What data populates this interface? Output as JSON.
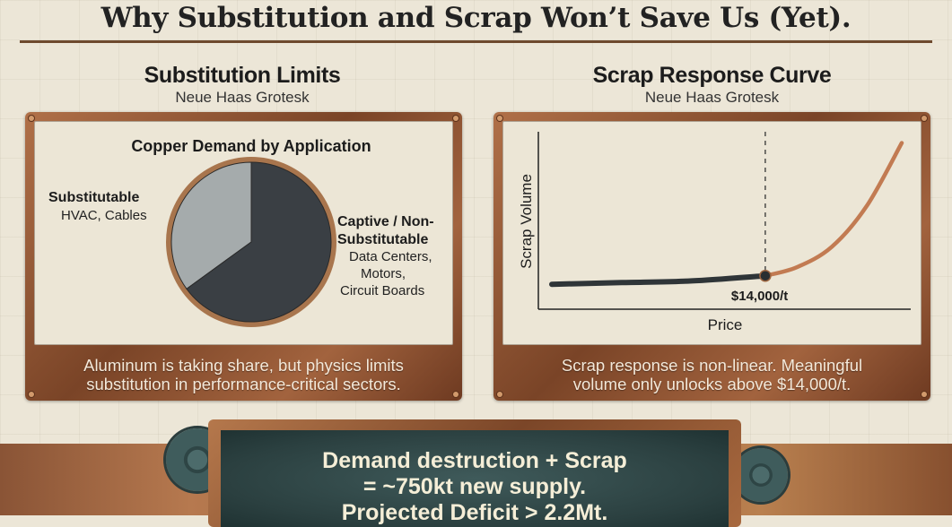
{
  "title": "Why Substitution and Scrap Won’t Save Us (Yet).",
  "left": {
    "heading": "Substitution Limits",
    "subheading": "Neue Haas Grotesk",
    "chart_title": "Copper Demand by Application",
    "substitutable_label": "Substitutable",
    "substitutable_detail": "HVAC, Cables",
    "captive_label_line1": "Captive / Non-",
    "captive_label_line2": "Substitutable",
    "captive_detail_line1": "Data Centers,",
    "captive_detail_line2": "Motors,",
    "captive_detail_line3": "Circuit Boards",
    "caption_line1": "Aluminum is taking share, but physics limits",
    "caption_line2": "substitution in performance-critical sectors."
  },
  "right": {
    "heading": "Scrap Response Curve",
    "subheading": "Neue Haas Grotesk",
    "caption_line1": "Scrap response is non-linear. Meaningful",
    "caption_line2": "volume only unlocks above $14,000/t."
  },
  "bottom": {
    "line1": "Demand destruction + Scrap",
    "line2": "= ~750kt new supply.",
    "line3": "Projected Deficit > 2.2Mt."
  },
  "colors": {
    "copper": "#b87048",
    "slate": "#3a3f44",
    "gray_slice": "#a5abac",
    "curve_dark": "#2f3538",
    "curve_copper": "#c27b52",
    "chalkboard": "#2e4545"
  },
  "chart_data": [
    {
      "type": "pie",
      "title": "Copper Demand by Application",
      "slices": [
        {
          "label": "Substitutable",
          "detail": "HVAC, Cables",
          "value": 0.35,
          "color": "#a5abac"
        },
        {
          "label": "Captive / Non-Substitutable",
          "detail": "Data Centers, Motors, Circuit Boards",
          "value": 0.65,
          "color": "#3a3f44"
        }
      ]
    },
    {
      "type": "line",
      "title": "Scrap Response Curve",
      "xlabel": "Price",
      "ylabel": "Scrap Volume",
      "threshold_label": "$14,000/t",
      "threshold_x": 0.61,
      "curve_points": [
        [
          0.0,
          0.12
        ],
        [
          0.2,
          0.13
        ],
        [
          0.4,
          0.14
        ],
        [
          0.61,
          0.17
        ],
        [
          0.7,
          0.22
        ],
        [
          0.8,
          0.34
        ],
        [
          0.9,
          0.58
        ],
        [
          1.0,
          0.95
        ]
      ]
    }
  ]
}
